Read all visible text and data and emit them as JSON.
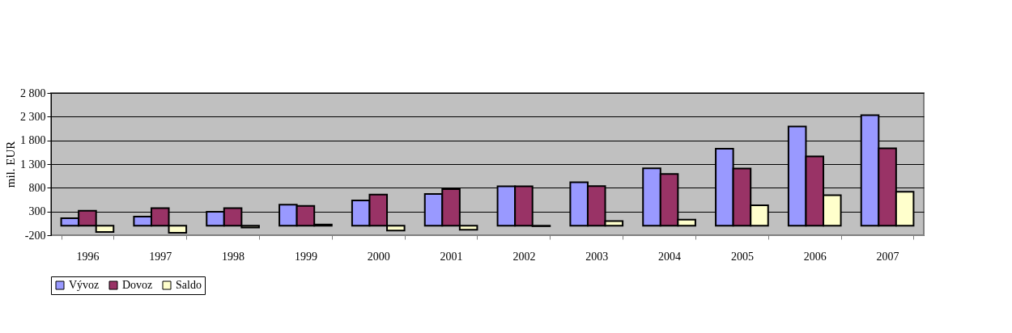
{
  "chart_data": {
    "type": "bar",
    "ylabel": "mil. EUR",
    "categories": [
      "1996",
      "1997",
      "1998",
      "1999",
      "2000",
      "2001",
      "2002",
      "2003",
      "2004",
      "2005",
      "2006",
      "2007"
    ],
    "series": [
      {
        "name": "Vývoz",
        "color": "#9999ff",
        "values": [
          158,
          192,
          295,
          445,
          534,
          670,
          830,
          915,
          1212,
          1624,
          2091,
          2333
        ]
      },
      {
        "name": "Dovoz",
        "color": "#993366",
        "values": [
          315,
          370,
          370,
          418,
          658,
          773,
          830,
          837,
          1092,
          1205,
          1460,
          1631
        ]
      },
      {
        "name": "Saldo",
        "color": "#ffffcc",
        "values": [
          -130,
          -150,
          -40,
          25,
          -100,
          -85,
          -10,
          100,
          128,
          432,
          645,
          716
        ]
      }
    ],
    "ylim": [
      -200,
      2800
    ],
    "yticks": [
      -200,
      300,
      800,
      {
        "value": 1300,
        "label": "1 300"
      },
      {
        "value": 1800,
        "label": "1 800"
      },
      {
        "value": 2300,
        "label": "2 300"
      },
      {
        "value": 2800,
        "label": "2 800"
      }
    ],
    "grid": "y",
    "legend": "bottom"
  }
}
